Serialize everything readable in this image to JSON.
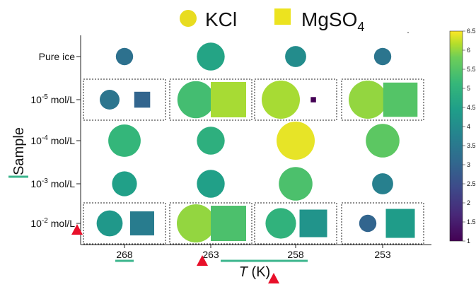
{
  "chart_data": {
    "type": "scatter",
    "legend": {
      "kcl_label": "KCl",
      "mgso4_label": "MgSO",
      "mgso4_sub": "4",
      "placement": "top"
    },
    "xlabel_italic": "T",
    "xlabel_unit": " (K)",
    "ylabel": "Sample",
    "x_ticks": [
      "268",
      "263",
      "258",
      "253"
    ],
    "y_ticks": [
      {
        "base": "Pure ice",
        "exp": "",
        "unit": ""
      },
      {
        "base": "10",
        "exp": "-5",
        "unit": " mol/L"
      },
      {
        "base": "10",
        "exp": "-4",
        "unit": " mol/L"
      },
      {
        "base": "10",
        "exp": "-3",
        "unit": " mol/L"
      },
      {
        "base": "10",
        "exp": "-2",
        "unit": " mol/L"
      }
    ],
    "colorbar": {
      "range": [
        1,
        6.5
      ],
      "ticks": [
        "1",
        "1.5",
        "2",
        "2.5",
        "3",
        "3.5",
        "4",
        "4.5",
        "5",
        "5.5",
        "6",
        "6.5"
      ],
      "colormap": "viridis"
    },
    "boxed_rows": [
      1,
      4
    ],
    "points": [
      {
        "sample": "Pure ice",
        "T": 268,
        "salt": "KCl",
        "value": 3.3,
        "size": 0.45
      },
      {
        "sample": "Pure ice",
        "T": 263,
        "salt": "KCl",
        "value": 4.6,
        "size": 0.73
      },
      {
        "sample": "Pure ice",
        "T": 258,
        "salt": "KCl",
        "value": 4.0,
        "size": 0.55
      },
      {
        "sample": "Pure ice",
        "T": 253,
        "salt": "KCl",
        "value": 3.4,
        "size": 0.45
      },
      {
        "sample": "1e-5",
        "T": 268,
        "salt": "KCl",
        "value": 3.4,
        "size": 0.52
      },
      {
        "sample": "1e-5",
        "T": 268,
        "salt": "MgSO4",
        "value": 3.0,
        "size": 0.45
      },
      {
        "sample": "1e-5",
        "T": 263,
        "salt": "KCl",
        "value": 5.3,
        "size": 0.97
      },
      {
        "sample": "1e-5",
        "T": 263,
        "salt": "MgSO4",
        "value": 6.1,
        "size": 1.0
      },
      {
        "sample": "1e-5",
        "T": 258,
        "salt": "KCl",
        "value": 6.1,
        "size": 1.0
      },
      {
        "sample": "1e-5",
        "T": 258,
        "salt": "MgSO4",
        "value": 1.0,
        "size": 0.15
      },
      {
        "sample": "1e-5",
        "T": 253,
        "salt": "KCl",
        "value": 6.0,
        "size": 1.0
      },
      {
        "sample": "1e-5",
        "T": 253,
        "salt": "MgSO4",
        "value": 5.5,
        "size": 0.97
      },
      {
        "sample": "1e-4",
        "T": 268,
        "salt": "KCl",
        "value": 5.1,
        "size": 0.85
      },
      {
        "sample": "1e-4",
        "T": 263,
        "salt": "KCl",
        "value": 4.9,
        "size": 0.73
      },
      {
        "sample": "1e-4",
        "T": 258,
        "salt": "KCl",
        "value": 6.4,
        "size": 1.0
      },
      {
        "sample": "1e-4",
        "T": 253,
        "salt": "KCl",
        "value": 5.6,
        "size": 0.88
      },
      {
        "sample": "1e-3",
        "T": 268,
        "salt": "KCl",
        "value": 4.5,
        "size": 0.65
      },
      {
        "sample": "1e-3",
        "T": 263,
        "salt": "KCl",
        "value": 4.5,
        "size": 0.73
      },
      {
        "sample": "1e-3",
        "T": 258,
        "salt": "KCl",
        "value": 5.4,
        "size": 0.88
      },
      {
        "sample": "1e-3",
        "T": 253,
        "salt": "KCl",
        "value": 3.7,
        "size": 0.55
      },
      {
        "sample": "1e-2",
        "T": 268,
        "salt": "KCl",
        "value": 4.3,
        "size": 0.68
      },
      {
        "sample": "1e-2",
        "T": 268,
        "salt": "MgSO4",
        "value": 3.6,
        "size": 0.68
      },
      {
        "sample": "1e-2",
        "T": 263,
        "salt": "KCl",
        "value": 6.0,
        "size": 1.0
      },
      {
        "sample": "1e-2",
        "T": 263,
        "salt": "MgSO4",
        "value": 5.4,
        "size": 1.0
      },
      {
        "sample": "1e-2",
        "T": 258,
        "salt": "KCl",
        "value": 5.0,
        "size": 0.8
      },
      {
        "sample": "1e-2",
        "T": 258,
        "salt": "MgSO4",
        "value": 4.2,
        "size": 0.78
      },
      {
        "sample": "1e-2",
        "T": 253,
        "salt": "KCl",
        "value": 3.0,
        "size": 0.45
      },
      {
        "sample": "1e-2",
        "T": 253,
        "salt": "MgSO4",
        "value": 4.4,
        "size": 0.82
      }
    ]
  }
}
